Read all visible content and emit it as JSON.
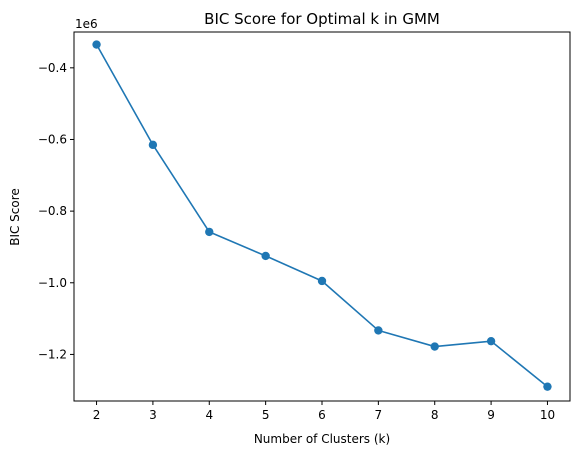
{
  "chart_data": {
    "type": "line",
    "title": "BIC Score for Optimal k in GMM",
    "xlabel": "Number of Clusters (k)",
    "ylabel": "BIC Score",
    "y_offset_label": "1e6",
    "x": [
      2,
      3,
      4,
      5,
      6,
      7,
      8,
      9,
      10
    ],
    "series": [
      {
        "values": [
          -0.335,
          -0.615,
          -0.858,
          -0.925,
          -0.995,
          -1.133,
          -1.178,
          -1.163,
          -1.29
        ],
        "color": "#1f77b4",
        "marker": "circle"
      }
    ],
    "xlim": [
      1.6,
      10.4
    ],
    "ylim": [
      -1.33,
      -0.3
    ],
    "xticks": [
      2,
      3,
      4,
      5,
      6,
      7,
      8,
      9,
      10
    ],
    "yticks": [
      -1.2,
      -1.0,
      -0.8,
      -0.6,
      -0.4
    ],
    "ytick_labels": [
      "−1.2",
      "−1.0",
      "−0.8",
      "−0.6",
      "−0.4"
    ],
    "grid": false,
    "legend": "none"
  }
}
